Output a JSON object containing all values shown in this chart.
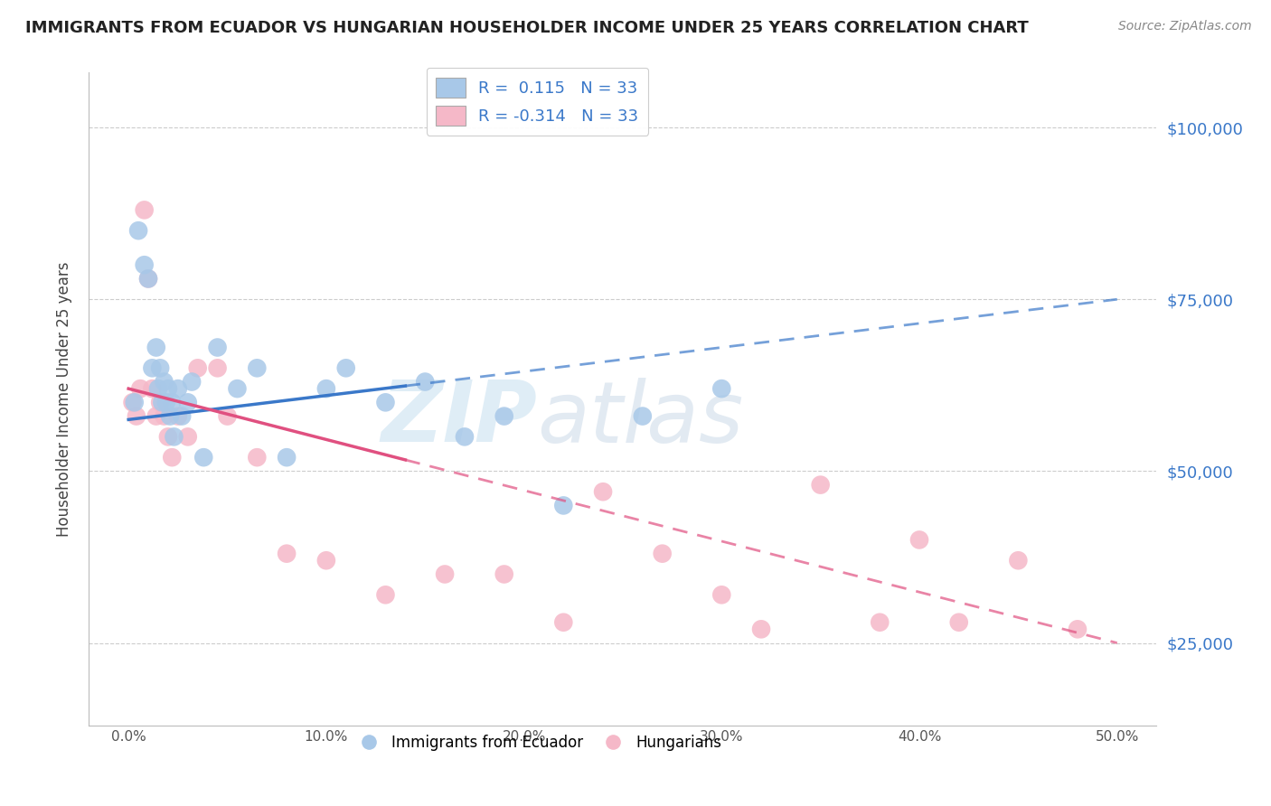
{
  "title": "IMMIGRANTS FROM ECUADOR VS HUNGARIAN HOUSEHOLDER INCOME UNDER 25 YEARS CORRELATION CHART",
  "source": "Source: ZipAtlas.com",
  "ylabel": "Householder Income Under 25 years",
  "R_blue": 0.115,
  "N_blue": 33,
  "R_pink": -0.314,
  "N_pink": 33,
  "blue_color": "#a8c8e8",
  "pink_color": "#f5b8c8",
  "blue_line_color": "#3a78c9",
  "pink_line_color": "#e05080",
  "blue_x": [
    0.3,
    0.5,
    0.8,
    1.0,
    1.2,
    1.4,
    1.5,
    1.6,
    1.7,
    1.8,
    1.9,
    2.0,
    2.1,
    2.2,
    2.3,
    2.5,
    2.7,
    3.0,
    3.2,
    3.8,
    4.5,
    5.5,
    6.5,
    8.0,
    10.0,
    11.0,
    13.0,
    15.0,
    17.0,
    19.0,
    22.0,
    26.0,
    30.0
  ],
  "blue_y": [
    60000,
    85000,
    80000,
    78000,
    65000,
    68000,
    62000,
    65000,
    60000,
    63000,
    60000,
    62000,
    58000,
    60000,
    55000,
    62000,
    58000,
    60000,
    63000,
    52000,
    68000,
    62000,
    65000,
    52000,
    62000,
    65000,
    60000,
    63000,
    55000,
    58000,
    45000,
    58000,
    62000
  ],
  "pink_x": [
    0.2,
    0.4,
    0.6,
    0.8,
    1.0,
    1.2,
    1.4,
    1.6,
    1.8,
    2.0,
    2.2,
    2.5,
    3.0,
    3.5,
    4.5,
    5.0,
    6.5,
    8.0,
    10.0,
    13.0,
    16.0,
    19.0,
    22.0,
    24.0,
    27.0,
    30.0,
    32.0,
    35.0,
    38.0,
    40.0,
    42.0,
    45.0,
    48.0
  ],
  "pink_y": [
    60000,
    58000,
    62000,
    88000,
    78000,
    62000,
    58000,
    60000,
    58000,
    55000,
    52000,
    58000,
    55000,
    65000,
    65000,
    58000,
    52000,
    38000,
    37000,
    32000,
    35000,
    35000,
    28000,
    47000,
    38000,
    32000,
    27000,
    48000,
    28000,
    40000,
    28000,
    37000,
    27000
  ],
  "blue_line_x0": 0,
  "blue_line_y0": 57500,
  "blue_line_x1": 50,
  "blue_line_y1": 75000,
  "pink_line_x0": 0,
  "pink_line_y0": 62000,
  "pink_line_x1": 50,
  "pink_line_y1": 25000,
  "solid_end_x": 14,
  "xlim": [
    -2,
    52
  ],
  "ylim": [
    13000,
    108000
  ],
  "yticks": [
    25000,
    50000,
    75000,
    100000
  ],
  "xticks": [
    0,
    10,
    20,
    30,
    40,
    50
  ]
}
